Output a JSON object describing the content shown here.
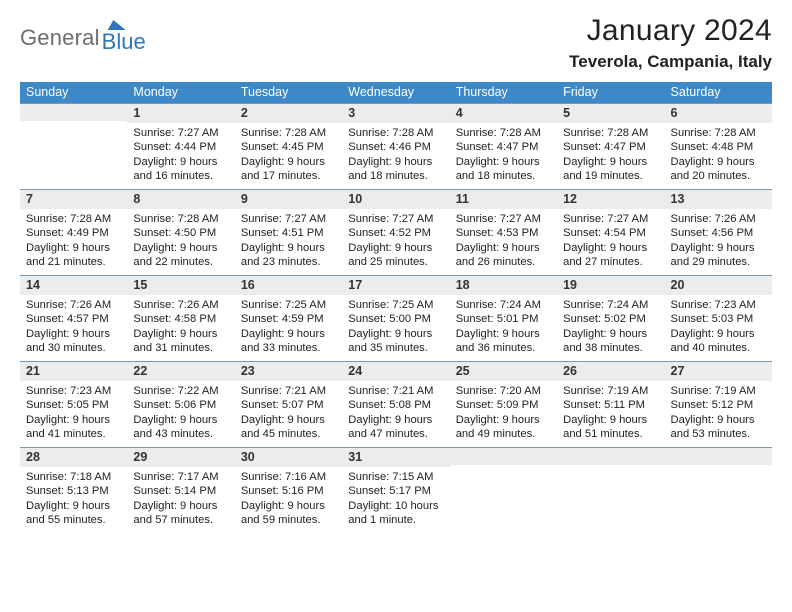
{
  "logo": {
    "text1": "General",
    "text2": "Blue"
  },
  "title": "January 2024",
  "location": "Teverola, Campania, Italy",
  "weekdays": [
    "Sunday",
    "Monday",
    "Tuesday",
    "Wednesday",
    "Thursday",
    "Friday",
    "Saturday"
  ],
  "colors": {
    "header_bg": "#3d88c7",
    "daynum_bg": "#ececec",
    "rule": "#7a99b0",
    "logo_gray": "#6d6d6d",
    "logo_blue": "#2f77bb"
  },
  "cells": [
    [
      {
        "n": "",
        "lines": []
      },
      {
        "n": "1",
        "lines": [
          "Sunrise: 7:27 AM",
          "Sunset: 4:44 PM",
          "Daylight: 9 hours",
          "and 16 minutes."
        ]
      },
      {
        "n": "2",
        "lines": [
          "Sunrise: 7:28 AM",
          "Sunset: 4:45 PM",
          "Daylight: 9 hours",
          "and 17 minutes."
        ]
      },
      {
        "n": "3",
        "lines": [
          "Sunrise: 7:28 AM",
          "Sunset: 4:46 PM",
          "Daylight: 9 hours",
          "and 18 minutes."
        ]
      },
      {
        "n": "4",
        "lines": [
          "Sunrise: 7:28 AM",
          "Sunset: 4:47 PM",
          "Daylight: 9 hours",
          "and 18 minutes."
        ]
      },
      {
        "n": "5",
        "lines": [
          "Sunrise: 7:28 AM",
          "Sunset: 4:47 PM",
          "Daylight: 9 hours",
          "and 19 minutes."
        ]
      },
      {
        "n": "6",
        "lines": [
          "Sunrise: 7:28 AM",
          "Sunset: 4:48 PM",
          "Daylight: 9 hours",
          "and 20 minutes."
        ]
      }
    ],
    [
      {
        "n": "7",
        "lines": [
          "Sunrise: 7:28 AM",
          "Sunset: 4:49 PM",
          "Daylight: 9 hours",
          "and 21 minutes."
        ]
      },
      {
        "n": "8",
        "lines": [
          "Sunrise: 7:28 AM",
          "Sunset: 4:50 PM",
          "Daylight: 9 hours",
          "and 22 minutes."
        ]
      },
      {
        "n": "9",
        "lines": [
          "Sunrise: 7:27 AM",
          "Sunset: 4:51 PM",
          "Daylight: 9 hours",
          "and 23 minutes."
        ]
      },
      {
        "n": "10",
        "lines": [
          "Sunrise: 7:27 AM",
          "Sunset: 4:52 PM",
          "Daylight: 9 hours",
          "and 25 minutes."
        ]
      },
      {
        "n": "11",
        "lines": [
          "Sunrise: 7:27 AM",
          "Sunset: 4:53 PM",
          "Daylight: 9 hours",
          "and 26 minutes."
        ]
      },
      {
        "n": "12",
        "lines": [
          "Sunrise: 7:27 AM",
          "Sunset: 4:54 PM",
          "Daylight: 9 hours",
          "and 27 minutes."
        ]
      },
      {
        "n": "13",
        "lines": [
          "Sunrise: 7:26 AM",
          "Sunset: 4:56 PM",
          "Daylight: 9 hours",
          "and 29 minutes."
        ]
      }
    ],
    [
      {
        "n": "14",
        "lines": [
          "Sunrise: 7:26 AM",
          "Sunset: 4:57 PM",
          "Daylight: 9 hours",
          "and 30 minutes."
        ]
      },
      {
        "n": "15",
        "lines": [
          "Sunrise: 7:26 AM",
          "Sunset: 4:58 PM",
          "Daylight: 9 hours",
          "and 31 minutes."
        ]
      },
      {
        "n": "16",
        "lines": [
          "Sunrise: 7:25 AM",
          "Sunset: 4:59 PM",
          "Daylight: 9 hours",
          "and 33 minutes."
        ]
      },
      {
        "n": "17",
        "lines": [
          "Sunrise: 7:25 AM",
          "Sunset: 5:00 PM",
          "Daylight: 9 hours",
          "and 35 minutes."
        ]
      },
      {
        "n": "18",
        "lines": [
          "Sunrise: 7:24 AM",
          "Sunset: 5:01 PM",
          "Daylight: 9 hours",
          "and 36 minutes."
        ]
      },
      {
        "n": "19",
        "lines": [
          "Sunrise: 7:24 AM",
          "Sunset: 5:02 PM",
          "Daylight: 9 hours",
          "and 38 minutes."
        ]
      },
      {
        "n": "20",
        "lines": [
          "Sunrise: 7:23 AM",
          "Sunset: 5:03 PM",
          "Daylight: 9 hours",
          "and 40 minutes."
        ]
      }
    ],
    [
      {
        "n": "21",
        "lines": [
          "Sunrise: 7:23 AM",
          "Sunset: 5:05 PM",
          "Daylight: 9 hours",
          "and 41 minutes."
        ]
      },
      {
        "n": "22",
        "lines": [
          "Sunrise: 7:22 AM",
          "Sunset: 5:06 PM",
          "Daylight: 9 hours",
          "and 43 minutes."
        ]
      },
      {
        "n": "23",
        "lines": [
          "Sunrise: 7:21 AM",
          "Sunset: 5:07 PM",
          "Daylight: 9 hours",
          "and 45 minutes."
        ]
      },
      {
        "n": "24",
        "lines": [
          "Sunrise: 7:21 AM",
          "Sunset: 5:08 PM",
          "Daylight: 9 hours",
          "and 47 minutes."
        ]
      },
      {
        "n": "25",
        "lines": [
          "Sunrise: 7:20 AM",
          "Sunset: 5:09 PM",
          "Daylight: 9 hours",
          "and 49 minutes."
        ]
      },
      {
        "n": "26",
        "lines": [
          "Sunrise: 7:19 AM",
          "Sunset: 5:11 PM",
          "Daylight: 9 hours",
          "and 51 minutes."
        ]
      },
      {
        "n": "27",
        "lines": [
          "Sunrise: 7:19 AM",
          "Sunset: 5:12 PM",
          "Daylight: 9 hours",
          "and 53 minutes."
        ]
      }
    ],
    [
      {
        "n": "28",
        "lines": [
          "Sunrise: 7:18 AM",
          "Sunset: 5:13 PM",
          "Daylight: 9 hours",
          "and 55 minutes."
        ]
      },
      {
        "n": "29",
        "lines": [
          "Sunrise: 7:17 AM",
          "Sunset: 5:14 PM",
          "Daylight: 9 hours",
          "and 57 minutes."
        ]
      },
      {
        "n": "30",
        "lines": [
          "Sunrise: 7:16 AM",
          "Sunset: 5:16 PM",
          "Daylight: 9 hours",
          "and 59 minutes."
        ]
      },
      {
        "n": "31",
        "lines": [
          "Sunrise: 7:15 AM",
          "Sunset: 5:17 PM",
          "Daylight: 10 hours",
          "and 1 minute."
        ]
      },
      {
        "n": "",
        "lines": []
      },
      {
        "n": "",
        "lines": []
      },
      {
        "n": "",
        "lines": []
      }
    ]
  ]
}
